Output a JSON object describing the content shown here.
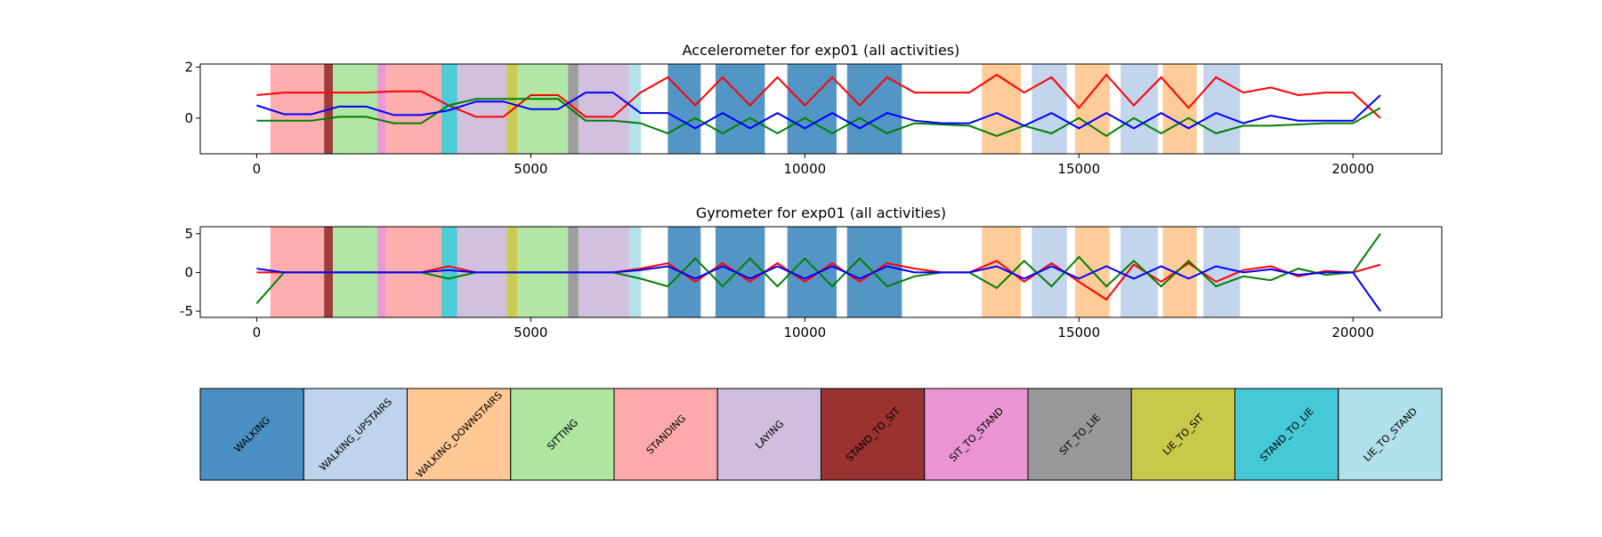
{
  "activities": [
    {
      "name": "WALKING",
      "color": "#4a90c2"
    },
    {
      "name": "WALKING_UPSTAIRS",
      "color": "#bfd3ec"
    },
    {
      "name": "WALKING_DOWNSTAIRS",
      "color": "#ffc894"
    },
    {
      "name": "SITTING",
      "color": "#aee5a0"
    },
    {
      "name": "STANDING",
      "color": "#ffaaaa"
    },
    {
      "name": "LAYING",
      "color": "#cfbedd"
    },
    {
      "name": "STAND_TO_SIT",
      "color": "#9b3232"
    },
    {
      "name": "SIT_TO_STAND",
      "color": "#e895d1"
    },
    {
      "name": "SIT_TO_LIE",
      "color": "#999999"
    },
    {
      "name": "LIE_TO_SIT",
      "color": "#c8c84b"
    },
    {
      "name": "STAND_TO_LIE",
      "color": "#45c9d6"
    },
    {
      "name": "LIE_TO_STAND",
      "color": "#b0e0ea"
    }
  ],
  "activity_spans": [
    {
      "activity": "STANDING",
      "start": 250,
      "end": 1230
    },
    {
      "activity": "STAND_TO_SIT",
      "start": 1230,
      "end": 1390
    },
    {
      "activity": "SITTING",
      "start": 1390,
      "end": 2200
    },
    {
      "activity": "SIT_TO_STAND",
      "start": 2200,
      "end": 2360
    },
    {
      "activity": "STANDING",
      "start": 2360,
      "end": 3370
    },
    {
      "activity": "STAND_TO_LIE",
      "start": 3370,
      "end": 3660
    },
    {
      "activity": "LAYING",
      "start": 3660,
      "end": 4560
    },
    {
      "activity": "LIE_TO_SIT",
      "start": 4560,
      "end": 4750
    },
    {
      "activity": "SITTING",
      "start": 4750,
      "end": 5680
    },
    {
      "activity": "SIT_TO_LIE",
      "start": 5680,
      "end": 5870
    },
    {
      "activity": "LAYING",
      "start": 5870,
      "end": 6800
    },
    {
      "activity": "LIE_TO_STAND",
      "start": 6800,
      "end": 7010
    },
    {
      "activity": "WALKING",
      "start": 7500,
      "end": 8100
    },
    {
      "activity": "WALKING",
      "start": 8370,
      "end": 9270
    },
    {
      "activity": "WALKING",
      "start": 9680,
      "end": 10580
    },
    {
      "activity": "WALKING",
      "start": 10770,
      "end": 11770
    },
    {
      "activity": "WALKING_DOWNSTAIRS",
      "start": 13230,
      "end": 13940
    },
    {
      "activity": "WALKING_UPSTAIRS",
      "start": 14140,
      "end": 14780
    },
    {
      "activity": "WALKING_DOWNSTAIRS",
      "start": 14930,
      "end": 15560
    },
    {
      "activity": "WALKING_UPSTAIRS",
      "start": 15760,
      "end": 16440
    },
    {
      "activity": "WALKING_DOWNSTAIRS",
      "start": 16530,
      "end": 17150
    },
    {
      "activity": "WALKING_UPSTAIRS",
      "start": 17270,
      "end": 17940
    }
  ],
  "chart_data": [
    {
      "type": "line",
      "title": "Accelerometer for exp01 (all activities)",
      "x": [
        0,
        500,
        1000,
        1500,
        2000,
        2500,
        3000,
        3500,
        4000,
        4500,
        5000,
        5500,
        6000,
        6500,
        7000,
        7500,
        8000,
        8500,
        9000,
        9500,
        10000,
        10500,
        11000,
        11500,
        12000,
        12500,
        13000,
        13500,
        14000,
        14500,
        15000,
        15500,
        16000,
        16500,
        17000,
        17500,
        18000,
        18500,
        19000,
        19500,
        20000,
        20500
      ],
      "series": [
        {
          "color": "#ff0000",
          "values": [
            0.9,
            1.0,
            1.0,
            1.0,
            1.0,
            1.05,
            1.05,
            0.5,
            0.05,
            0.05,
            0.9,
            0.9,
            0.05,
            0.05,
            1.0,
            1.6,
            0.5,
            1.6,
            0.5,
            1.6,
            0.5,
            1.6,
            0.5,
            1.6,
            1.0,
            1.0,
            1.0,
            1.7,
            1.0,
            1.6,
            0.4,
            1.7,
            0.5,
            1.6,
            0.4,
            1.6,
            1.0,
            1.2,
            0.9,
            1.0,
            1.0,
            0.0
          ]
        },
        {
          "color": "#008000",
          "values": [
            -0.1,
            -0.1,
            -0.1,
            0.05,
            0.05,
            -0.2,
            -0.2,
            0.5,
            0.75,
            0.75,
            0.75,
            0.75,
            -0.1,
            -0.1,
            -0.2,
            -0.6,
            0.0,
            -0.6,
            0.0,
            -0.6,
            0.0,
            -0.6,
            0.0,
            -0.6,
            -0.2,
            -0.25,
            -0.3,
            -0.7,
            -0.3,
            -0.6,
            0.0,
            -0.7,
            0.0,
            -0.6,
            0.0,
            -0.6,
            -0.3,
            -0.3,
            -0.25,
            -0.2,
            -0.2,
            0.4
          ]
        },
        {
          "color": "#0000ff",
          "values": [
            0.5,
            0.15,
            0.15,
            0.45,
            0.45,
            0.12,
            0.12,
            0.3,
            0.65,
            0.65,
            0.35,
            0.35,
            1.0,
            1.0,
            0.2,
            0.2,
            -0.4,
            0.2,
            -0.4,
            0.2,
            -0.4,
            0.2,
            -0.4,
            0.2,
            -0.1,
            -0.2,
            -0.2,
            0.2,
            -0.3,
            0.2,
            -0.4,
            0.2,
            -0.4,
            0.2,
            -0.4,
            0.2,
            -0.2,
            0.1,
            -0.1,
            -0.1,
            -0.1,
            0.9
          ]
        }
      ],
      "xlim": [
        -1030,
        21620
      ],
      "xticks": [
        0,
        5000,
        10000,
        15000,
        20000
      ],
      "ylim": [
        -1.4,
        2.12
      ],
      "yticks": [
        0,
        2
      ]
    },
    {
      "type": "line",
      "title": "Gyrometer for exp01 (all activities)",
      "x": [
        0,
        500,
        1000,
        1500,
        2000,
        2500,
        3000,
        3500,
        4000,
        4500,
        5000,
        5500,
        6000,
        6500,
        7000,
        7500,
        8000,
        8500,
        9000,
        9500,
        10000,
        10500,
        11000,
        11500,
        12000,
        12500,
        13000,
        13500,
        14000,
        14500,
        15000,
        15500,
        16000,
        16500,
        17000,
        17500,
        18000,
        18500,
        19000,
        19500,
        20000,
        20500
      ],
      "series": [
        {
          "color": "#ff0000",
          "values": [
            0,
            0,
            0,
            0,
            0,
            0,
            0,
            0.8,
            0,
            0,
            0,
            0,
            0,
            0,
            0.5,
            1.2,
            -1.2,
            1.2,
            -1.2,
            1.2,
            -1.2,
            1.2,
            -1.2,
            1.2,
            0.5,
            0,
            0,
            1.5,
            -1.2,
            1.2,
            -1.2,
            -3.5,
            1.0,
            -1.2,
            1.2,
            -1.2,
            0.3,
            0.8,
            -0.5,
            0.2,
            0,
            1.0
          ]
        },
        {
          "color": "#008000",
          "values": [
            -4.0,
            0,
            0,
            0,
            0,
            0,
            0,
            -0.8,
            0,
            0,
            0,
            0,
            0,
            0,
            -0.8,
            -1.8,
            1.8,
            -1.8,
            1.8,
            -1.8,
            1.8,
            -1.8,
            1.8,
            -1.8,
            -0.5,
            0,
            0,
            -2.0,
            1.5,
            -1.8,
            2.0,
            -1.8,
            1.5,
            -1.8,
            1.5,
            -1.8,
            -0.5,
            -1.0,
            0.5,
            -0.3,
            0,
            5.0
          ]
        },
        {
          "color": "#0000ff",
          "values": [
            0.5,
            0,
            0,
            0,
            0,
            0,
            0,
            0.3,
            0,
            0,
            0,
            0,
            0,
            0,
            0.3,
            0.8,
            -0.8,
            0.8,
            -0.8,
            0.8,
            -0.8,
            0.8,
            -0.8,
            0.8,
            0,
            0,
            0,
            0.8,
            -0.8,
            0.8,
            -0.8,
            0.8,
            -0.8,
            0.8,
            -0.8,
            0.8,
            0,
            0.4,
            -0.3,
            0,
            0,
            -5.0
          ]
        }
      ],
      "xlim": [
        -1030,
        21620
      ],
      "xticks": [
        0,
        5000,
        10000,
        15000,
        20000
      ],
      "ylim": [
        -5.8,
        5.9
      ],
      "yticks": [
        -5,
        0,
        5
      ]
    }
  ]
}
